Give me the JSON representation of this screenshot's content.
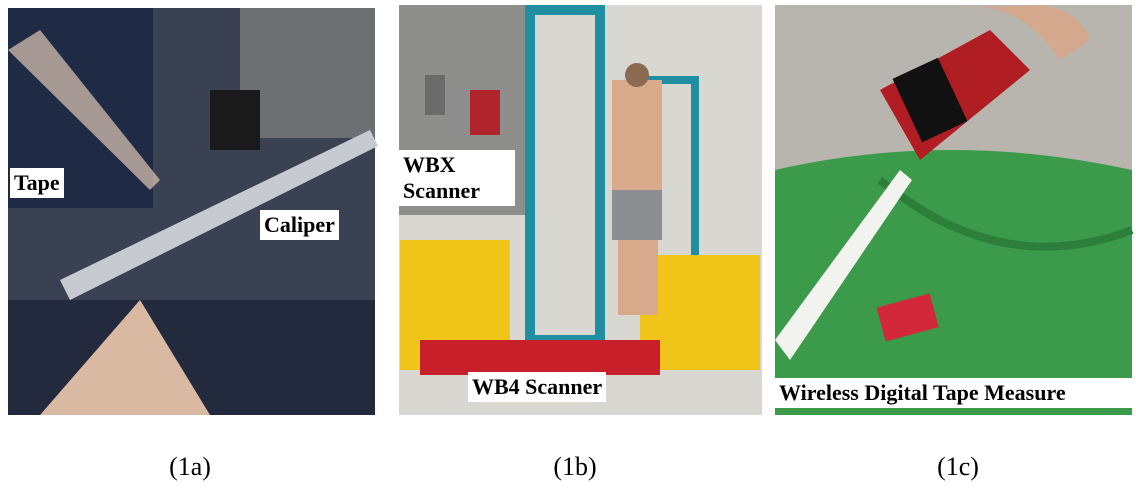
{
  "panels": [
    {
      "labels": [
        "Tape",
        "Caliper"
      ],
      "caption": "(1a)"
    },
    {
      "labels": [
        "WBX Scanner",
        "WB4 Scanner"
      ],
      "caption": "(1b)"
    },
    {
      "labels": [
        "Wireless Digital Tape Measure"
      ],
      "caption": "(1c)"
    }
  ]
}
